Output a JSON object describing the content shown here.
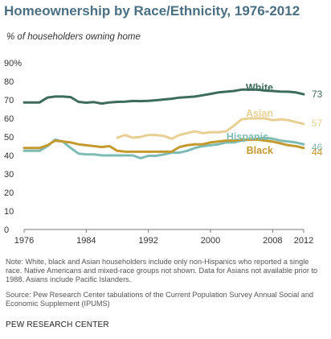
{
  "title": "Homeownership by Race/Ethnicity, 1976-2012",
  "subtitle": "% of householders owning home",
  "note": "Note: White, black and Asian householders include only non-Hispanics who reported a single race. Native Americans and mixed-race groups not shown. Data for Asians not available prior to 1988. Asians include Pacific Islanders.",
  "source": "Source: Pew Research Center tabulations of the Current Population Survey Annual Social and Economic Supplement (IPUMS)",
  "credit": "PEW RESEARCH CENTER",
  "chart_data": {
    "type": "line",
    "xlim": [
      1976,
      2012
    ],
    "ylim": [
      0,
      90
    ],
    "y_ticks": [
      0,
      10,
      20,
      30,
      40,
      50,
      60,
      70,
      80,
      90
    ],
    "y_tick_labels": [
      "0",
      "10",
      "20",
      "30",
      "40",
      "50",
      "60",
      "70",
      "80",
      "90%"
    ],
    "x_ticks": [
      1976,
      1984,
      1992,
      2000,
      2008,
      2012
    ],
    "x_tick_labels": [
      "1976",
      "1984",
      "1992",
      "2000",
      "2008",
      "2012"
    ],
    "grid": false,
    "legend": "direct labels at line ends",
    "series": [
      {
        "name": "White",
        "color": "#3d6b5c",
        "end_label": "73",
        "x": [
          1976,
          1977,
          1978,
          1979,
          1980,
          1981,
          1982,
          1983,
          1984,
          1985,
          1986,
          1987,
          1988,
          1989,
          1990,
          1991,
          1992,
          1993,
          1994,
          1995,
          1996,
          1997,
          1998,
          1999,
          2000,
          2001,
          2002,
          2003,
          2004,
          2005,
          2006,
          2007,
          2008,
          2009,
          2010,
          2011,
          2012
        ],
        "values": [
          68.6,
          68.6,
          68.6,
          71.2,
          71.8,
          71.8,
          71.5,
          68.9,
          68.5,
          68.8,
          68.0,
          68.6,
          68.9,
          69.0,
          69.4,
          69.3,
          69.5,
          69.8,
          70.2,
          70.6,
          71.2,
          71.5,
          71.8,
          72.5,
          73.2,
          74.0,
          74.4,
          74.8,
          75.5,
          75.5,
          75.5,
          75.0,
          74.8,
          74.5,
          74.4,
          74.0,
          73.0
        ]
      },
      {
        "name": "Asian",
        "color": "#e8cf94",
        "end_label": "57",
        "x": [
          1988,
          1989,
          1990,
          1991,
          1992,
          1993,
          1994,
          1995,
          1996,
          1997,
          1998,
          1999,
          2000,
          2001,
          2002,
          2003,
          2004,
          2005,
          2006,
          2007,
          2008,
          2009,
          2010,
          2011,
          2012
        ],
        "values": [
          49.5,
          51.0,
          49.5,
          50.0,
          51.0,
          51.0,
          50.5,
          49.0,
          51.0,
          52.0,
          53.0,
          52.0,
          52.5,
          52.5,
          53.0,
          56.0,
          59.5,
          60.0,
          60.0,
          60.0,
          59.0,
          59.5,
          59.0,
          58.0,
          57.0
        ]
      },
      {
        "name": "Hispanic",
        "color": "#7dbcb4",
        "end_label": "46",
        "x": [
          1976,
          1977,
          1978,
          1979,
          1980,
          1981,
          1982,
          1983,
          1984,
          1985,
          1986,
          1987,
          1988,
          1989,
          1990,
          1991,
          1992,
          1993,
          1994,
          1995,
          1996,
          1997,
          1998,
          1999,
          2000,
          2001,
          2002,
          2003,
          2004,
          2005,
          2006,
          2007,
          2008,
          2009,
          2010,
          2011,
          2012
        ],
        "values": [
          42.5,
          42.5,
          42.5,
          45.0,
          48.5,
          47.5,
          44.0,
          41.0,
          40.5,
          40.5,
          40.0,
          40.0,
          40.0,
          40.0,
          40.0,
          38.5,
          39.8,
          39.8,
          40.5,
          41.5,
          41.5,
          42.5,
          44.0,
          45.0,
          45.5,
          46.0,
          47.0,
          47.0,
          48.0,
          48.5,
          49.0,
          49.5,
          49.0,
          48.0,
          47.5,
          47.0,
          46.0
        ]
      },
      {
        "name": "Black",
        "color": "#c49a2e",
        "end_label": "44",
        "x": [
          1976,
          1977,
          1978,
          1979,
          1980,
          1981,
          1982,
          1983,
          1984,
          1985,
          1986,
          1987,
          1988,
          1989,
          1990,
          1991,
          1992,
          1993,
          1994,
          1995,
          1996,
          1997,
          1998,
          1999,
          2000,
          2001,
          2002,
          2003,
          2004,
          2005,
          2006,
          2007,
          2008,
          2009,
          2010,
          2011,
          2012
        ],
        "values": [
          44.0,
          44.0,
          44.0,
          45.5,
          48.0,
          47.5,
          47.0,
          46.0,
          45.5,
          45.0,
          44.5,
          45.0,
          42.5,
          42.0,
          42.0,
          42.0,
          42.0,
          42.0,
          42.0,
          42.0,
          44.5,
          45.5,
          46.0,
          46.0,
          47.0,
          47.5,
          48.0,
          48.0,
          48.5,
          48.5,
          48.5,
          48.0,
          47.5,
          46.5,
          45.5,
          45.0,
          44.0
        ]
      }
    ]
  }
}
